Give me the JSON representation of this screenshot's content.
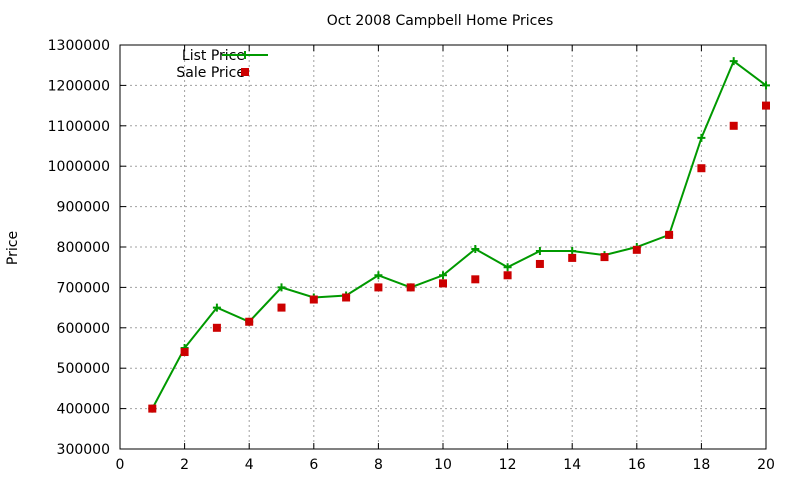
{
  "chart_data": {
    "type": "line",
    "title": "Oct 2008 Campbell Home Prices",
    "xlabel": "",
    "ylabel": "Price",
    "xlim": [
      0,
      20
    ],
    "ylim": [
      300000,
      1300000
    ],
    "x_ticks": [
      "0",
      "2",
      "4",
      "6",
      "8",
      "10",
      "12",
      "14",
      "16",
      "18",
      "20"
    ],
    "y_ticks": [
      "300000",
      "400000",
      "500000",
      "600000",
      "700000",
      "800000",
      "900000",
      "1000000",
      "1100000",
      "1200000",
      "1300000"
    ],
    "grid": true,
    "legend_position": "top-left",
    "series": [
      {
        "name": "List Price",
        "style": "line-plus",
        "color": "#009900",
        "x": [
          1,
          2,
          3,
          4,
          5,
          6,
          7,
          8,
          9,
          10,
          11,
          12,
          13,
          14,
          15,
          16,
          17,
          18,
          19,
          20
        ],
        "values": [
          400000,
          550000,
          650000,
          615000,
          700000,
          675000,
          680000,
          730000,
          700000,
          730000,
          795000,
          750000,
          790000,
          790000,
          780000,
          800000,
          830000,
          1070000,
          1260000,
          1200000
        ]
      },
      {
        "name": "Sale Price",
        "style": "square-points",
        "color": "#cc0000",
        "x": [
          1,
          2,
          3,
          4,
          5,
          6,
          7,
          8,
          9,
          10,
          11,
          12,
          13,
          14,
          15,
          16,
          17,
          18,
          19,
          20
        ],
        "values": [
          400000,
          540000,
          600000,
          615000,
          650000,
          670000,
          675000,
          700000,
          700000,
          710000,
          720000,
          730000,
          758000,
          773000,
          775000,
          793000,
          830000,
          995000,
          1100000,
          1150000
        ]
      }
    ]
  }
}
